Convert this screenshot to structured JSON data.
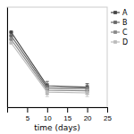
{
  "chart_data": {
    "type": "line",
    "xlabel": "time (days)",
    "x": [
      1,
      10,
      20
    ],
    "series": [
      {
        "name": "A",
        "color": "#444444",
        "values": [
          8.95,
          8.2,
          8.18
        ],
        "errors": [
          0.0,
          0.06,
          0.05
        ],
        "marker": "square",
        "line_style": "solid"
      },
      {
        "name": "B",
        "color": "#666666",
        "values": [
          8.9,
          8.17,
          8.16
        ],
        "errors": [
          0.0,
          0.06,
          0.05
        ],
        "marker": "square",
        "line_style": "solid"
      },
      {
        "name": "C",
        "color": "#888888",
        "values": [
          8.85,
          8.14,
          8.13
        ],
        "errors": [
          0.0,
          0.06,
          0.05
        ],
        "marker": "square",
        "line_style": "solid"
      },
      {
        "name": "D",
        "color": "#bbbbbb",
        "values": [
          8.8,
          8.11,
          8.1
        ],
        "errors": [
          0.0,
          0.06,
          0.05
        ],
        "marker": "square",
        "line_style": "solid"
      }
    ],
    "xlim": [
      0,
      25
    ],
    "ylim": [
      7.9,
      9.3
    ],
    "xticks": [
      5,
      10,
      15,
      20,
      25
    ],
    "yticks": [],
    "tick_labels": "x",
    "legend": "right"
  }
}
